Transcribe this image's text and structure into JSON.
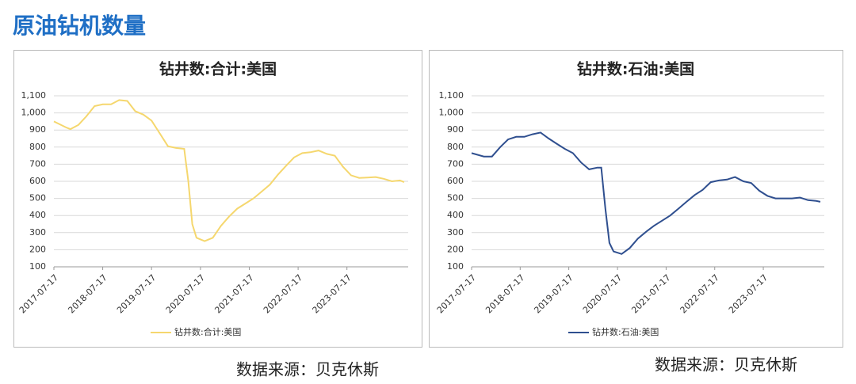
{
  "header": {
    "title": "原油钻机数量"
  },
  "chart_data": [
    {
      "type": "line",
      "title": "钻井数:合计:美国",
      "x": [
        "2017-07-17",
        "2017-10-17",
        "2017-11-17",
        "2018-01-17",
        "2018-03-17",
        "2018-05-17",
        "2018-07-17",
        "2018-09-17",
        "2018-11-17",
        "2019-01-17",
        "2019-03-17",
        "2019-05-17",
        "2019-07-17",
        "2019-09-17",
        "2019-11-17",
        "2020-01-17",
        "2020-03-17",
        "2020-04-17",
        "2020-05-17",
        "2020-06-17",
        "2020-08-17",
        "2020-10-17",
        "2020-12-17",
        "2021-02-17",
        "2021-04-17",
        "2021-06-17",
        "2021-08-17",
        "2021-10-17",
        "2021-12-17",
        "2022-02-17",
        "2022-04-17",
        "2022-06-17",
        "2022-08-17",
        "2022-10-17",
        "2022-12-17",
        "2023-02-17",
        "2023-04-17",
        "2023-06-17",
        "2023-08-17",
        "2023-10-17",
        "2023-12-17",
        "2024-02-17",
        "2024-04-17",
        "2024-06-17",
        "2024-08-17",
        "2024-09-17"
      ],
      "series": [
        {
          "name": "钻井数:合计:美国",
          "color": "#f5d76e",
          "values": [
            950,
            915,
            905,
            930,
            980,
            1040,
            1050,
            1050,
            1075,
            1070,
            1010,
            990,
            955,
            880,
            805,
            795,
            790,
            600,
            350,
            270,
            250,
            270,
            340,
            395,
            440,
            470,
            500,
            540,
            580,
            640,
            690,
            740,
            765,
            770,
            780,
            760,
            750,
            685,
            635,
            620,
            622,
            625,
            615,
            600,
            605,
            595
          ]
        }
      ],
      "xlim": [
        "2017-07-17",
        "2024-10-17"
      ],
      "xticks": [
        "2017-07-17",
        "2018-07-17",
        "2019-07-17",
        "2020-07-17",
        "2021-07-17",
        "2022-07-17",
        "2023-07-17"
      ],
      "ylim": [
        100,
        1100
      ],
      "yticks": [
        100,
        200,
        300,
        400,
        500,
        600,
        700,
        800,
        900,
        {
          "value": 1000,
          "label": "1,000"
        },
        {
          "value": 1100,
          "label": "1,100"
        }
      ],
      "grid": true,
      "legend": "bottom"
    },
    {
      "type": "line",
      "title": "钻井数:石油:美国",
      "x": [
        "2017-07-17",
        "2017-10-17",
        "2017-12-17",
        "2018-02-17",
        "2018-04-17",
        "2018-06-17",
        "2018-08-17",
        "2018-10-17",
        "2018-12-17",
        "2019-02-17",
        "2019-04-17",
        "2019-06-17",
        "2019-08-17",
        "2019-10-17",
        "2019-12-17",
        "2020-02-17",
        "2020-03-17",
        "2020-04-17",
        "2020-05-17",
        "2020-06-17",
        "2020-08-17",
        "2020-10-17",
        "2020-12-17",
        "2021-02-17",
        "2021-04-17",
        "2021-06-17",
        "2021-08-17",
        "2021-10-17",
        "2021-12-17",
        "2022-02-17",
        "2022-04-17",
        "2022-06-17",
        "2022-08-17",
        "2022-10-17",
        "2022-12-17",
        "2023-02-17",
        "2023-04-17",
        "2023-06-17",
        "2023-08-17",
        "2023-10-17",
        "2023-12-17",
        "2024-02-17",
        "2024-04-17",
        "2024-06-17",
        "2024-08-17",
        "2024-09-17"
      ],
      "series": [
        {
          "name": "钻井数:石油:美国",
          "color": "#2f4f8f",
          "values": [
            765,
            745,
            745,
            800,
            845,
            860,
            860,
            875,
            885,
            850,
            820,
            790,
            765,
            710,
            670,
            680,
            680,
            440,
            240,
            190,
            175,
            210,
            265,
            305,
            340,
            370,
            400,
            440,
            480,
            520,
            550,
            595,
            605,
            610,
            625,
            600,
            590,
            545,
            515,
            500,
            500,
            500,
            505,
            490,
            485,
            480
          ]
        }
      ],
      "xlim": [
        "2017-07-17",
        "2024-10-17"
      ],
      "xticks": [
        "2017-07-17",
        "2018-07-17",
        "2019-07-17",
        "2020-07-17",
        "2021-07-17",
        "2022-07-17",
        "2023-07-17"
      ],
      "ylim": [
        100,
        1100
      ],
      "yticks": [
        100,
        200,
        300,
        400,
        500,
        600,
        700,
        800,
        900,
        {
          "value": 1000,
          "label": "1,000"
        },
        {
          "value": 1100,
          "label": "1,100"
        }
      ],
      "grid": true,
      "legend": "bottom"
    }
  ],
  "footer": {
    "sources": [
      "数据来源：贝克休斯",
      "数据来源：贝克休斯"
    ]
  }
}
